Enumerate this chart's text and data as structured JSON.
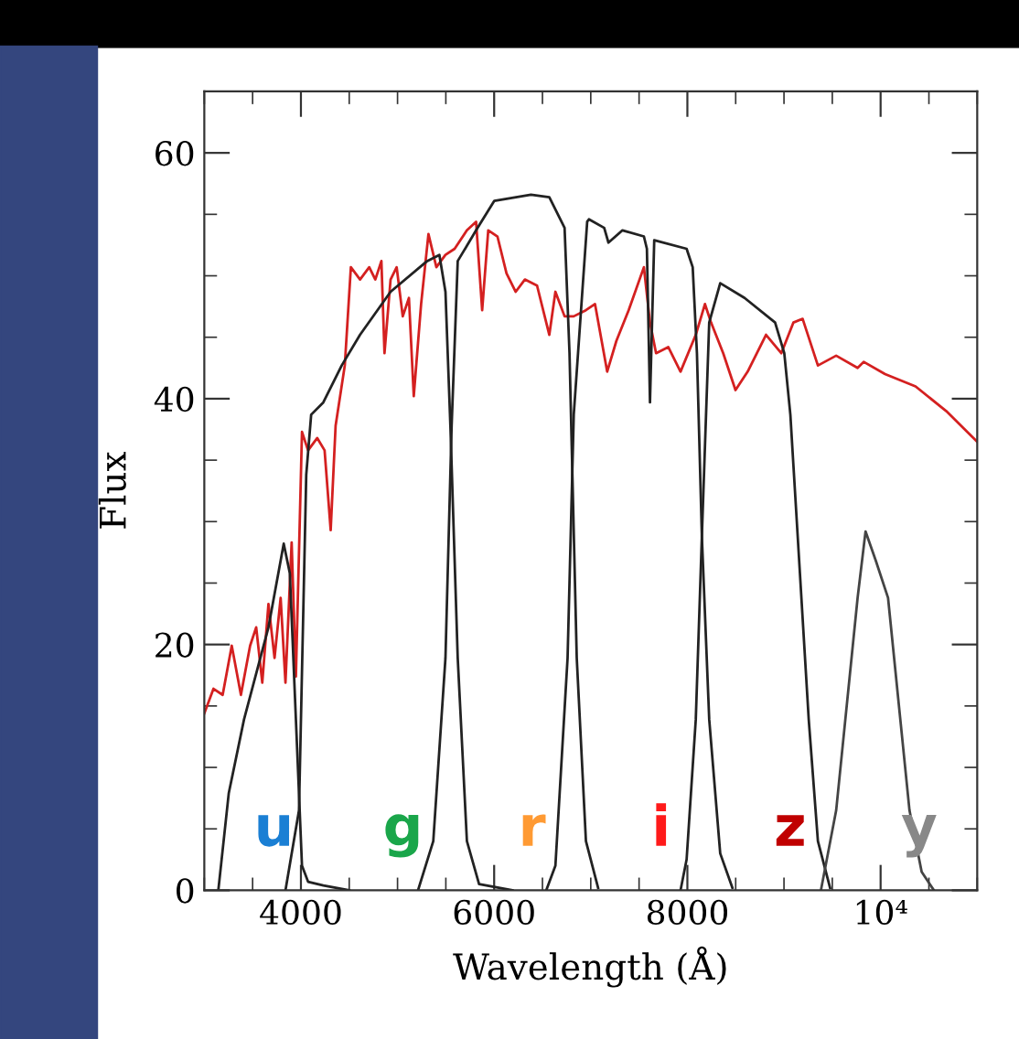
{
  "chart_data": {
    "type": "line",
    "xlabel": "Wavelength (Å)",
    "ylabel": "Flux",
    "xlim": [
      3000,
      11000
    ],
    "ylim": [
      0,
      65
    ],
    "xticks": [
      {
        "value": 3000,
        "label": null
      },
      {
        "value": 3500,
        "label": null
      },
      4000,
      {
        "value": 4500,
        "label": null
      },
      {
        "value": 5000,
        "label": null
      },
      {
        "value": 5500,
        "label": null
      },
      6000,
      {
        "value": 6500,
        "label": null
      },
      {
        "value": 7000,
        "label": null
      },
      {
        "value": 7500,
        "label": null
      },
      8000,
      {
        "value": 8500,
        "label": null
      },
      {
        "value": 9000,
        "label": null
      },
      {
        "value": 9500,
        "label": null
      },
      {
        "value": 10000,
        "label": "10⁴"
      },
      {
        "value": 10500,
        "label": null
      },
      {
        "value": 11000,
        "label": null
      }
    ],
    "yticks": [
      0,
      {
        "value": 5,
        "label": null
      },
      {
        "value": 10,
        "label": null
      },
      {
        "value": 15,
        "label": null
      },
      20,
      {
        "value": 25,
        "label": null
      },
      {
        "value": 30,
        "label": null
      },
      {
        "value": 35,
        "label": null
      },
      40,
      {
        "value": 45,
        "label": null
      },
      {
        "value": 50,
        "label": null
      },
      {
        "value": 55,
        "label": null
      },
      60
    ],
    "grid": false,
    "legend": false,
    "marker": "none",
    "line_style": "solid",
    "series": [
      {
        "color": "#d42020",
        "x": [
          3000,
          3095,
          3190,
          3284,
          3379,
          3474,
          3537,
          3600,
          3664,
          3727,
          3790,
          3840,
          3904,
          3948,
          4011,
          4074,
          4169,
          4245,
          4308,
          4359,
          4454,
          4517,
          4612,
          4707,
          4770,
          4833,
          4865,
          4928,
          4991,
          5054,
          5118,
          5168,
          5244,
          5320,
          5402,
          5496,
          5591,
          5718,
          5813,
          5876,
          5939,
          6034,
          6128,
          6223,
          6318,
          6444,
          6571,
          6634,
          6729,
          6823,
          6949,
          7044,
          7170,
          7265,
          7392,
          7550,
          7613,
          7676,
          7802,
          7929,
          8087,
          8182,
          8245,
          8371,
          8498,
          8624,
          8814,
          8972,
          9098,
          9193,
          9351,
          9540,
          9762,
          9825,
          10046,
          10362,
          10678,
          11000
        ],
        "values": [
          14.4,
          16.4,
          15.9,
          19.9,
          15.9,
          19.9,
          21.4,
          16.9,
          23.3,
          18.9,
          23.8,
          16.9,
          28.3,
          17.4,
          37.3,
          35.8,
          36.8,
          35.8,
          29.3,
          37.8,
          42.7,
          50.7,
          49.7,
          50.7,
          49.7,
          51.2,
          43.7,
          49.7,
          50.7,
          46.7,
          48.2,
          40.2,
          47.7,
          53.4,
          50.7,
          51.7,
          52.2,
          53.7,
          54.4,
          47.2,
          53.7,
          53.2,
          50.2,
          48.7,
          49.7,
          49.2,
          45.2,
          48.7,
          46.7,
          46.7,
          47.2,
          47.7,
          42.2,
          44.7,
          47.2,
          50.7,
          46.2,
          43.7,
          44.2,
          42.2,
          45.2,
          47.7,
          46.2,
          43.7,
          40.7,
          42.2,
          45.2,
          43.7,
          46.2,
          46.5,
          42.7,
          43.5,
          42.5,
          43,
          42,
          41,
          39,
          36.5
        ]
      },
      {
        "color": "#222222",
        "x": [
          3145,
          3253,
          3411,
          3664,
          3822,
          3885,
          3948,
          4011,
          4074,
          4232,
          4500
        ],
        "values": [
          0,
          7.9,
          13.9,
          21.4,
          28.2,
          25.8,
          13.9,
          2,
          0.7,
          0.4,
          0
        ]
      },
      {
        "color": "#222222",
        "x": [
          3840,
          3980,
          4055,
          4106,
          4232,
          4422,
          4612,
          4928,
          5307,
          5433,
          5496,
          5547,
          5623,
          5718,
          5844,
          6190
        ],
        "values": [
          0,
          6.5,
          33.8,
          38.7,
          39.7,
          42.7,
          45.2,
          48.7,
          51.2,
          51.7,
          48.7,
          37.8,
          18.9,
          4,
          0.5,
          0
        ]
      },
      {
        "color": "#222222",
        "x": [
          5212,
          5370,
          5496,
          5560,
          5623,
          5813,
          6002,
          6381,
          6571,
          6729,
          6780,
          6855,
          6950,
          7076
        ],
        "values": [
          0,
          4,
          18.9,
          37.8,
          51.2,
          53.7,
          56.1,
          56.6,
          56.4,
          53.9,
          43.7,
          18.9,
          4,
          0.2
        ]
      },
      {
        "color": "#222222",
        "x": [
          6539,
          6634,
          6760,
          6824,
          6963,
          6981,
          7139,
          7183,
          7328,
          7550,
          7581,
          7613,
          7657,
          7992,
          8055,
          8099,
          8150,
          8226,
          8340,
          8466
        ],
        "values": [
          0,
          2,
          18.9,
          38.7,
          54.4,
          54.6,
          53.9,
          52.7,
          53.7,
          53.2,
          52.2,
          39.7,
          52.9,
          52.2,
          50.7,
          43.7,
          28.8,
          13.9,
          3,
          0.2
        ]
      },
      {
        "color": "#222222",
        "x": [
          7929,
          7992,
          8087,
          8150,
          8226,
          8340,
          8592,
          8908,
          9003,
          9066,
          9161,
          9256,
          9351,
          9477
        ],
        "values": [
          0,
          2.5,
          13.9,
          28.8,
          46.2,
          49.4,
          48.2,
          46.2,
          43.7,
          38.7,
          26.3,
          13.9,
          4,
          0.2
        ]
      },
      {
        "color": "#444444",
        "x": [
          9382,
          9540,
          9667,
          9762,
          9844,
          9951,
          10077,
          10204,
          10299,
          10425,
          10552
        ],
        "values": [
          0,
          6.5,
          16.4,
          23.8,
          29.2,
          26.8,
          23.8,
          13.9,
          6.5,
          1.5,
          0
        ]
      }
    ],
    "annotations": [
      "u",
      "g",
      "r",
      "i",
      "z",
      "y"
    ]
  }
}
